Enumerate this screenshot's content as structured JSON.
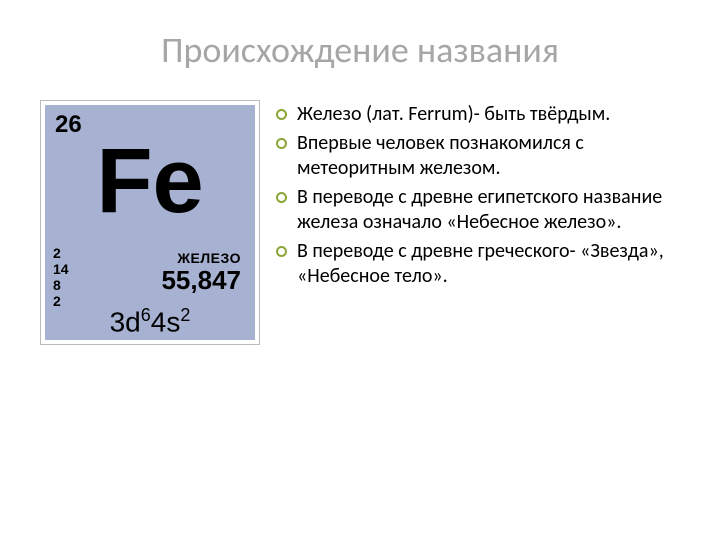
{
  "title": "Происхождение названия",
  "element_tile": {
    "atomic_number": "26",
    "symbol": "Fe",
    "name": "ЖЕЛЕЗО",
    "mass": "55,847",
    "config_html": "3d",
    "config_sup1": "6",
    "config_mid": "4s",
    "config_sup2": "2",
    "shells": [
      "2",
      "14",
      "8",
      "2"
    ],
    "background_color": "#a7b1d1",
    "border_color": "#bbbbbb",
    "text_color": "#000000"
  },
  "bullets": [
    "Железо (лат. Ferrum)- быть твёрдым.",
    "Впервые человек познакомился с метеоритным железом.",
    "В переводе с древне египетского название железа означало «Небесное железо».",
    "В переводе с древне греческого- «Звезда», «Небесное тело»."
  ],
  "style": {
    "title_color": "#a6a6a6",
    "title_fontsize": 36,
    "bullet_marker_color": "#8aa636",
    "bullet_text_color": "#000000",
    "bullet_fontsize": 20,
    "slide_background": "#ffffff"
  }
}
